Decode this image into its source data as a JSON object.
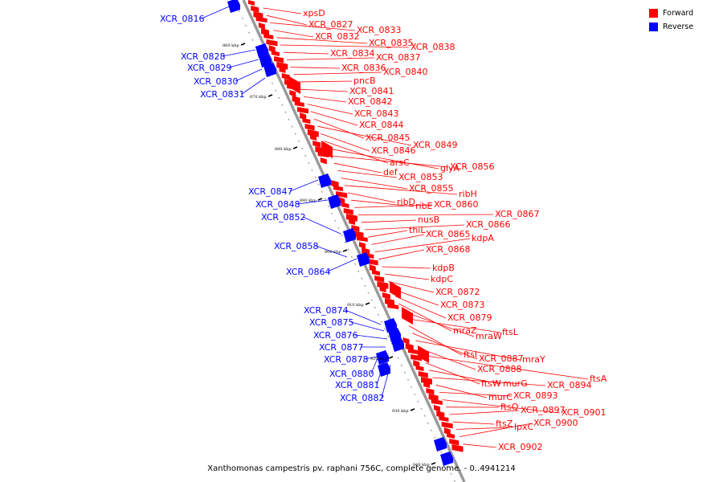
{
  "caption": "Xanthomonas campestris pv. raphani 756C, complete genome. - 0..4941214",
  "legend": [
    {
      "label": "Forward",
      "color": "#ff0000"
    },
    {
      "label": "Reverse",
      "color": "#0000ff"
    }
  ],
  "colors": {
    "forward": "#ff0000",
    "reverse": "#0000ff",
    "backbone": "#999999"
  },
  "ticks": [
    "860 kbp",
    "870 kbp",
    "880 kbp",
    "890 kbp",
    "900 kbp",
    "910 kbp",
    "920 kbp",
    "930 kbp",
    "940 kbp"
  ],
  "forward_labels": [
    "xpsD",
    "XCR_0827",
    "XCR_0833",
    "XCR_0832",
    "XCR_0835",
    "XCR_0838",
    "XCR_0834",
    "XCR_0837",
    "XCR_0836",
    "XCR_0840",
    "pncB",
    "XCR_0841",
    "XCR_0842",
    "XCR_0843",
    "XCR_0844",
    "XCR_0845",
    "XCR_0849",
    "XCR_0846",
    "arsC",
    "glyA",
    "XCR_0856",
    "def",
    "XCR_0853",
    "XCR_0855",
    "ribH",
    "ribD",
    "ribE",
    "XCR_0860",
    "XCR_0867",
    "nusB",
    "XCR_0866",
    "thiL",
    "XCR_0865",
    "kdpA",
    "XCR_0868",
    "kdpB",
    "kdpC",
    "XCR_0872",
    "XCR_0873",
    "XCR_0879",
    "mraZ",
    "mraW",
    "ftsL",
    "ftsI",
    "XCR_0887",
    "mraY",
    "XCR_0888",
    "ftsA",
    "ftsW",
    "murG",
    "XCR_0894",
    "murC",
    "XCR_0893",
    "XCR_0901",
    "ftsQ",
    "XCR_0897",
    "ftsZ",
    "lpxC",
    "XCR_0900",
    "XCR_0902"
  ],
  "reverse_labels": [
    "XCR_0816",
    "XCR_0828",
    "XCR_0829",
    "XCR_0830",
    "XCR_0831",
    "XCR_0847",
    "XCR_0848",
    "XCR_0852",
    "XCR_0858",
    "XCR_0864",
    "XCR_0874",
    "XCR_0875",
    "XCR_0876",
    "XCR_0877",
    "XCR_0878",
    "XCR_0880",
    "XCR_0881",
    "XCR_0882"
  ]
}
